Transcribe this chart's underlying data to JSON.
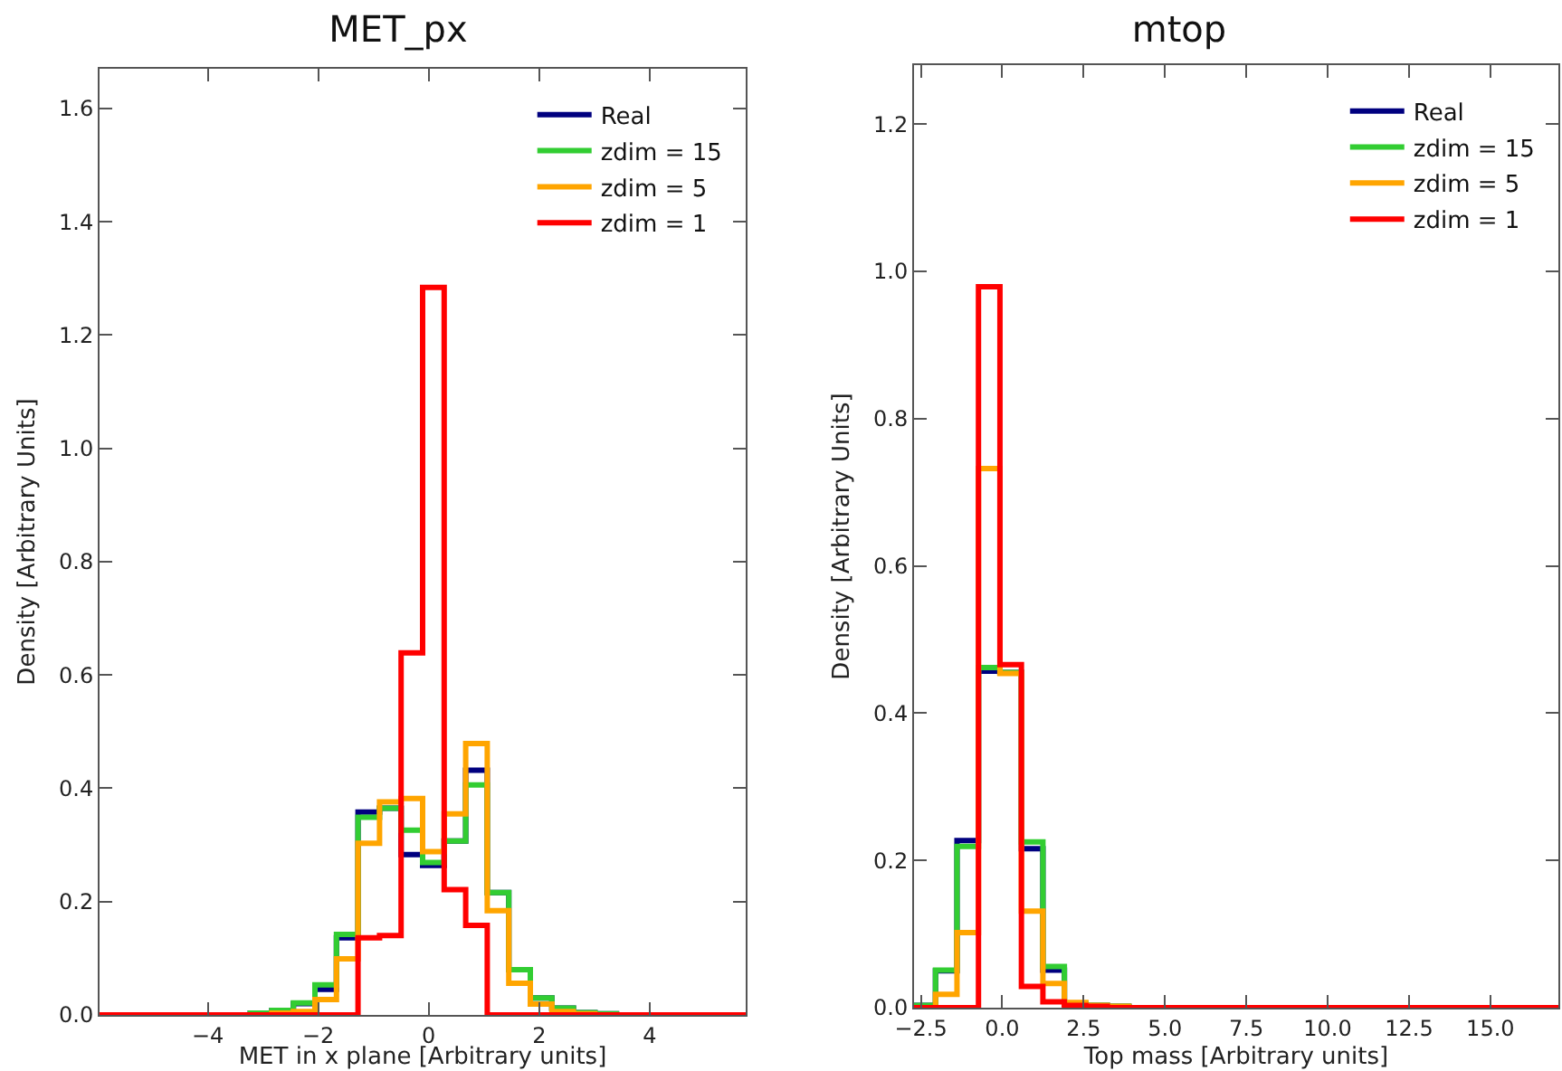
{
  "chart_data": [
    {
      "type": "histogram",
      "title": "MET_px",
      "xlabel": "MET in x plane [Arbitrary units]",
      "ylabel": "Density [Arbitrary Units]",
      "bins": [
        -5.96,
        -5.57,
        -5.18,
        -4.79,
        -4.4,
        -4.01,
        -3.62,
        -3.23,
        -2.84,
        -2.45,
        -2.06,
        -1.67,
        -1.28,
        -0.89,
        -0.5,
        -0.11,
        0.28,
        0.67,
        1.06,
        1.45,
        1.84,
        2.23,
        2.62,
        3.01,
        3.4,
        3.79,
        4.18,
        4.57,
        4.96,
        5.35,
        5.74
      ],
      "series": [
        {
          "name": "Real",
          "color": "#00007f",
          "values": [
            0,
            0,
            0,
            0,
            0,
            0,
            0,
            0.003,
            0.008,
            0.02,
            0.045,
            0.136,
            0.358,
            0.365,
            0.283,
            0.264,
            0.307,
            0.432,
            0.216,
            0.08,
            0.03,
            0.012,
            0.004,
            0.002,
            0,
            0,
            0,
            0,
            0,
            0
          ]
        },
        {
          "name": "zdim = 15",
          "color": "#32cd32",
          "values": [
            0,
            0,
            0,
            0,
            0,
            0,
            0,
            0.003,
            0.008,
            0.021,
            0.053,
            0.142,
            0.349,
            0.365,
            0.326,
            0.269,
            0.307,
            0.406,
            0.216,
            0.08,
            0.03,
            0.012,
            0.004,
            0.002,
            0,
            0,
            0,
            0,
            0,
            0
          ]
        },
        {
          "name": "zdim = 5",
          "color": "#ffa500",
          "values": [
            0,
            0,
            0,
            0,
            0,
            0,
            0,
            0,
            0.003,
            0.006,
            0.027,
            0.099,
            0.303,
            0.376,
            0.382,
            0.288,
            0.355,
            0.479,
            0.184,
            0.056,
            0.019,
            0.006,
            0.002,
            0,
            0,
            0,
            0,
            0,
            0,
            0
          ]
        },
        {
          "name": "zdim = 1",
          "color": "#ff0000",
          "values": [
            0,
            0,
            0,
            0,
            0,
            0,
            0,
            0,
            0,
            0,
            0,
            0,
            0.136,
            0.14,
            0.639,
            1.284,
            0.221,
            0.158,
            0,
            0,
            0,
            0,
            0,
            0,
            0,
            0,
            0,
            0,
            0,
            0
          ]
        }
      ],
      "xlim": [
        -5.96,
        5.74
      ],
      "ylim": [
        0,
        1.67
      ],
      "xticks": [
        {
          "value": -4,
          "label": "−4"
        },
        {
          "value": -2,
          "label": "−2"
        },
        0,
        2,
        4
      ],
      "yticks": [
        {
          "value": 0,
          "label": "0.0"
        },
        {
          "value": 0.2,
          "label": "0.2"
        },
        {
          "value": 0.4,
          "label": "0.4"
        },
        {
          "value": 0.6,
          "label": "0.6"
        },
        {
          "value": 0.8,
          "label": "0.8"
        },
        {
          "value": 1,
          "label": "1.0"
        },
        {
          "value": 1.2,
          "label": "1.2"
        },
        {
          "value": 1.4,
          "label": "1.4"
        },
        {
          "value": 1.6,
          "label": "1.6"
        }
      ],
      "legend": "top right"
    },
    {
      "type": "histogram",
      "title": "mtop",
      "xlabel": "Top mass [Arbitrary units]",
      "ylabel": "Density [Arbitrary Units]",
      "bins": [
        -2.71,
        -2.05,
        -1.39,
        -0.73,
        -0.07,
        0.59,
        1.25,
        1.91,
        2.57,
        3.23,
        3.89,
        4.55,
        5.21,
        5.87,
        6.53,
        7.19,
        7.85,
        8.51,
        9.17,
        9.83,
        10.49,
        11.15,
        11.81,
        12.47,
        13.13,
        13.79,
        14.45,
        15.11,
        15.77,
        16.43,
        17.09
      ],
      "series": [
        {
          "name": "Real",
          "color": "#00007f",
          "values": [
            0.003,
            0.05,
            0.227,
            0.457,
            0.455,
            0.216,
            0.051,
            0.005,
            0.003,
            0.002,
            0,
            0,
            0,
            0,
            0,
            0,
            0,
            0,
            0,
            0,
            0,
            0,
            0,
            0,
            0,
            0,
            0,
            0,
            0,
            0
          ]
        },
        {
          "name": "zdim = 15",
          "color": "#32cd32",
          "values": [
            0.003,
            0.051,
            0.219,
            0.462,
            0.455,
            0.225,
            0.056,
            0.006,
            0.003,
            0.002,
            0,
            0,
            0,
            0,
            0,
            0,
            0,
            0,
            0,
            0,
            0,
            0,
            0,
            0,
            0,
            0,
            0,
            0,
            0,
            0
          ]
        },
        {
          "name": "zdim = 5",
          "color": "#ffa500",
          "values": [
            0,
            0.018,
            0.102,
            0.732,
            0.454,
            0.131,
            0.033,
            0.007,
            0.003,
            0.002,
            0,
            0,
            0,
            0,
            0,
            0,
            0,
            0,
            0,
            0,
            0,
            0,
            0,
            0,
            0,
            0,
            0,
            0,
            0,
            0
          ]
        },
        {
          "name": "zdim = 1",
          "color": "#ff0000",
          "values": [
            0,
            0,
            0,
            0.979,
            0.466,
            0.029,
            0.008,
            0.003,
            0.002,
            0,
            0,
            0,
            0,
            0,
            0,
            0,
            0,
            0,
            0,
            0,
            0,
            0,
            0,
            0,
            0,
            0,
            0,
            0,
            0,
            0
          ]
        }
      ],
      "xlim": [
        -2.71,
        17.09
      ],
      "ylim": [
        0,
        1.28
      ],
      "xticks": [
        {
          "value": -2.5,
          "label": "−2.5"
        },
        {
          "value": 0,
          "label": "0.0"
        },
        {
          "value": 2.5,
          "label": "2.5"
        },
        {
          "value": 5,
          "label": "5.0"
        },
        {
          "value": 7.5,
          "label": "7.5"
        },
        {
          "value": 10,
          "label": "10.0"
        },
        {
          "value": 12.5,
          "label": "12.5"
        },
        {
          "value": 15,
          "label": "15.0"
        }
      ],
      "yticks": [
        {
          "value": 0,
          "label": "0.0"
        },
        {
          "value": 0.2,
          "label": "0.2"
        },
        {
          "value": 0.4,
          "label": "0.4"
        },
        {
          "value": 0.6,
          "label": "0.6"
        },
        {
          "value": 0.8,
          "label": "0.8"
        },
        {
          "value": 1,
          "label": "1.0"
        },
        {
          "value": 1.2,
          "label": "1.2"
        }
      ],
      "legend": "top right"
    }
  ]
}
